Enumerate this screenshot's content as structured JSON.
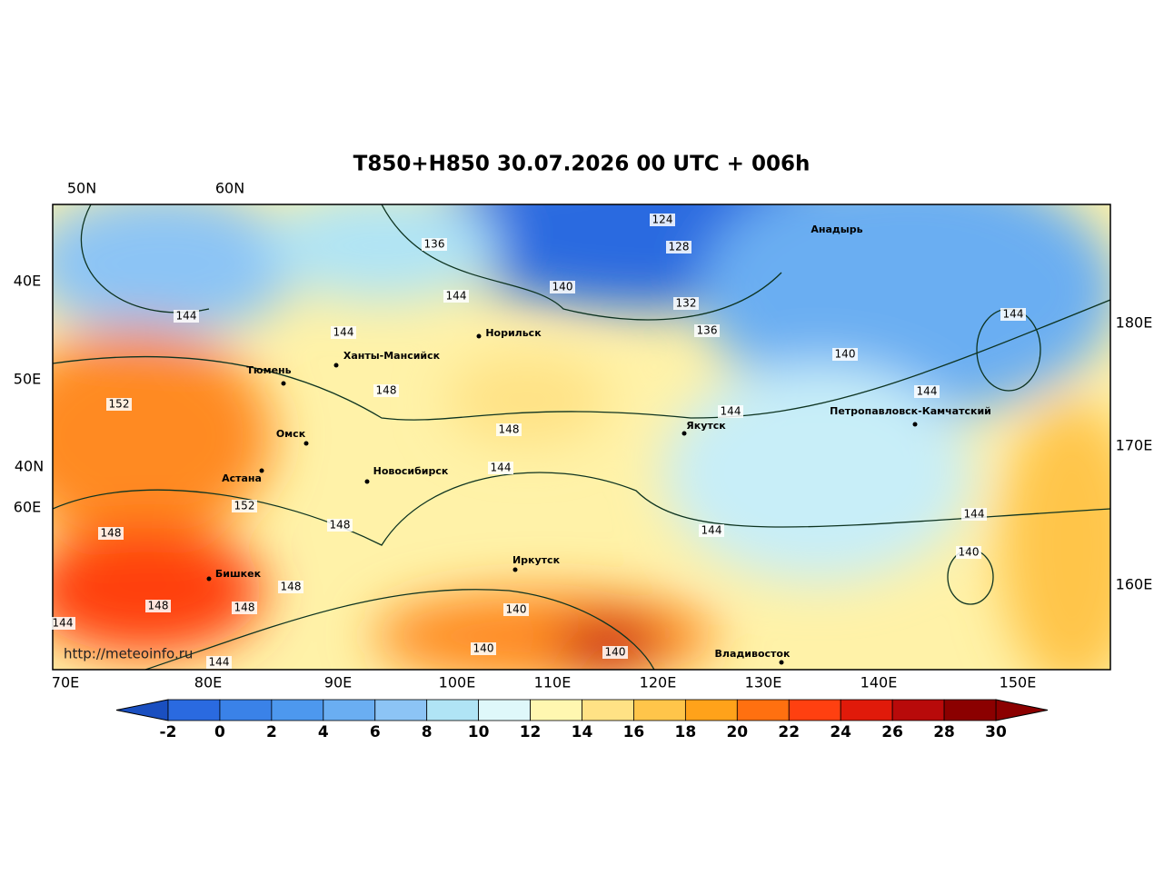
{
  "title": "T850+H850 30.07.2026 00 UTC + 006h",
  "watermark": "http://meteoinfo.ru",
  "grid_labels": {
    "top": [
      "50N",
      "60N"
    ],
    "left": [
      "40E",
      "50E",
      "40N",
      "60E"
    ],
    "right": [
      "180E",
      "170E",
      "160E"
    ],
    "bottom": [
      "70E",
      "80E",
      "90E",
      "100E",
      "110E",
      "120E",
      "130E",
      "140E",
      "150E"
    ]
  },
  "cities": [
    "Анадырь",
    "Норильск",
    "Ханты-Мансийск",
    "Тюмень",
    "Омск",
    "Астана",
    "Новосибирск",
    "Якутск",
    "Петропавловск-Камчатский",
    "Иркутск",
    "Бишкек",
    "Владивосток"
  ],
  "contour_labels": [
    124,
    128,
    132,
    136,
    136,
    140,
    144,
    144,
    144,
    148,
    148,
    144,
    144,
    140,
    144,
    144,
    144,
    140,
    144,
    152,
    152,
    148,
    148,
    148,
    148,
    148,
    144,
    144,
    140,
    140,
    140
  ],
  "colorbar": {
    "ticks": [
      -2,
      0,
      2,
      4,
      6,
      8,
      10,
      12,
      14,
      16,
      18,
      20,
      22,
      24,
      26,
      28,
      30
    ],
    "under_color": "#1a4fc0",
    "over_color": "#8b0000",
    "colors": [
      "#2a6ae0",
      "#3a82e8",
      "#4d98ee",
      "#6aaef2",
      "#8cc4f5",
      "#b0e4f5",
      "#dff8fa",
      "#fff7b0",
      "#ffe285",
      "#ffc54a",
      "#ffa21a",
      "#ff7010",
      "#ff4010",
      "#e01a0a",
      "#b80a0a",
      "#8b0000"
    ]
  }
}
